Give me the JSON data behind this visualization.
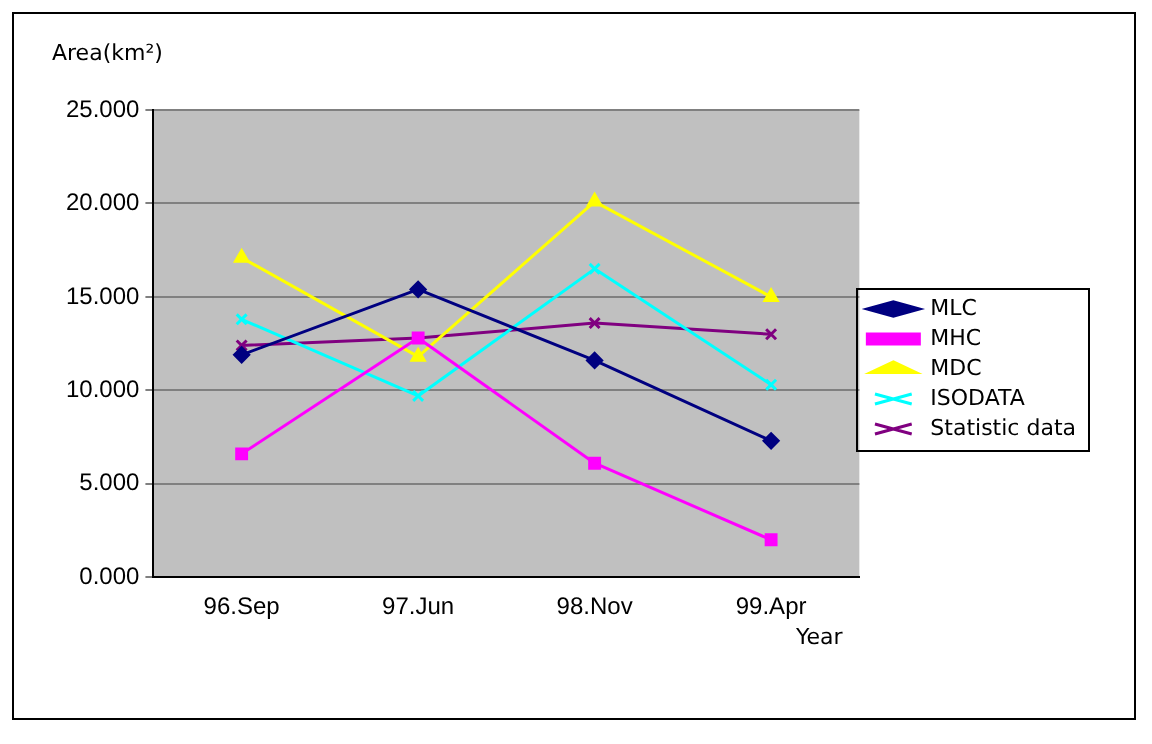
{
  "chart_data": {
    "type": "line",
    "xlabel": "Year",
    "ylabel": "Area(km²)",
    "categories": [
      "96.Sep",
      "97.Jun",
      "98.Nov",
      "99.Apr"
    ],
    "series": [
      {
        "name": "MLC",
        "color": "#000080",
        "marker": "diamond",
        "values": [
          11.9,
          15.4,
          11.6,
          7.3
        ]
      },
      {
        "name": "MHC",
        "color": "#ff00ff",
        "marker": "square",
        "values": [
          6.6,
          12.8,
          6.1,
          2.0
        ]
      },
      {
        "name": "MDC",
        "color": "#ffff00",
        "marker": "triangle",
        "values": [
          17.1,
          11.8,
          20.1,
          15.0
        ]
      },
      {
        "name": "ISODATA",
        "color": "#00ffff",
        "marker": "cross",
        "values": [
          13.8,
          9.7,
          16.5,
          10.3
        ]
      },
      {
        "name": "Statistic data",
        "color": "#800080",
        "marker": "cross",
        "values": [
          12.4,
          12.8,
          13.6,
          13.0
        ]
      }
    ],
    "ylim": [
      0,
      25
    ],
    "yticks": [
      {
        "value": 0,
        "label": "0.000"
      },
      {
        "value": 5,
        "label": "5.000"
      },
      {
        "value": 10,
        "label": "10.000"
      },
      {
        "value": 15,
        "label": "15.000"
      },
      {
        "value": 20,
        "label": "20.000"
      },
      {
        "value": 25,
        "label": "25.000"
      }
    ],
    "grid": "y",
    "legend": "right",
    "line_style": "solid"
  }
}
